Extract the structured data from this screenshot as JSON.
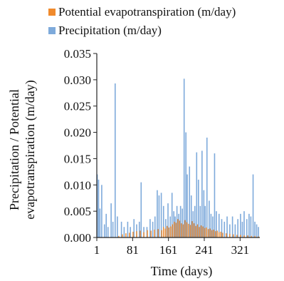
{
  "chart_data": {
    "type": "bar",
    "xlabel": "Time (days)",
    "ylabel_lines": [
      "Precipitation / Potential",
      "evapotranspiration (m/day)"
    ],
    "xlim": [
      1,
      365
    ],
    "ylim": [
      0,
      0.035
    ],
    "xticks": [
      1,
      81,
      161,
      241,
      321
    ],
    "yticks": [
      0.0,
      0.005,
      0.01,
      0.015,
      0.02,
      0.025,
      0.03,
      0.035
    ],
    "ytick_labels": [
      "0.000",
      "0.005",
      "0.010",
      "0.015",
      "0.020",
      "0.025",
      "0.030",
      "0.035"
    ],
    "grid": false,
    "legend_position": "top-left",
    "series": [
      {
        "name": "Potential evapotranspiration (m/day)",
        "color": "#f08a2c",
        "x": [
          50,
          58,
          66,
          74,
          82,
          90,
          98,
          106,
          114,
          122,
          130,
          138,
          146,
          150,
          154,
          158,
          162,
          166,
          170,
          174,
          178,
          182,
          186,
          190,
          194,
          198,
          202,
          206,
          210,
          214,
          218,
          222,
          226,
          230,
          234,
          238,
          242,
          246,
          250,
          254,
          258,
          262,
          266,
          270,
          274,
          278,
          282,
          290,
          298,
          306,
          314,
          322,
          330,
          338,
          346,
          354,
          362
        ],
        "values": [
          0.0003,
          0.0006,
          0.0008,
          0.0009,
          0.0011,
          0.0012,
          0.0013,
          0.001,
          0.0014,
          0.0013,
          0.0015,
          0.0016,
          0.0014,
          0.002,
          0.0017,
          0.0022,
          0.0019,
          0.0021,
          0.0025,
          0.003,
          0.0028,
          0.0035,
          0.0032,
          0.0027,
          0.0025,
          0.0033,
          0.0029,
          0.0026,
          0.0024,
          0.0031,
          0.0027,
          0.0022,
          0.0025,
          0.002,
          0.0023,
          0.0021,
          0.0018,
          0.0019,
          0.0016,
          0.0017,
          0.0014,
          0.0015,
          0.0012,
          0.0013,
          0.001,
          0.0011,
          0.0009,
          0.0008,
          0.0007,
          0.0006,
          0.0005,
          0.0005,
          0.0004,
          0.0004,
          0.0003,
          0.0003,
          0.0002
        ]
      },
      {
        "name": "Precipitation (m/day)",
        "color": "#7eaadb",
        "x": [
          2,
          5,
          8,
          12,
          18,
          22,
          26,
          33,
          37,
          42,
          47,
          56,
          62,
          70,
          76,
          84,
          90,
          96,
          100,
          106,
          113,
          120,
          126,
          131,
          136,
          140,
          145,
          150,
          155,
          160,
          165,
          169,
          173,
          176,
          180,
          184,
          188,
          192,
          196,
          200,
          203,
          208,
          212,
          216,
          220,
          224,
          228,
          232,
          236,
          240,
          243,
          247,
          252,
          256,
          260,
          264,
          268,
          274,
          280,
          286,
          292,
          298,
          304,
          310,
          316,
          322,
          326,
          330,
          336,
          341,
          345,
          350,
          354,
          358,
          362
        ],
        "values": [
          0.012,
          0.011,
          0.0055,
          0.01,
          0.0025,
          0.0045,
          0.002,
          0.0065,
          0.003,
          0.0293,
          0.004,
          0.003,
          0.002,
          0.003,
          0.002,
          0.0035,
          0.0025,
          0.003,
          0.0105,
          0.002,
          0.002,
          0.0035,
          0.003,
          0.004,
          0.009,
          0.008,
          0.0085,
          0.006,
          0.0035,
          0.0065,
          0.004,
          0.0085,
          0.005,
          0.004,
          0.006,
          0.0045,
          0.006,
          0.0055,
          0.0302,
          0.02,
          0.012,
          0.0135,
          0.008,
          0.005,
          0.006,
          0.0162,
          0.011,
          0.006,
          0.0165,
          0.009,
          0.006,
          0.019,
          0.007,
          0.0045,
          0.004,
          0.016,
          0.005,
          0.0045,
          0.0035,
          0.003,
          0.004,
          0.0025,
          0.004,
          0.0025,
          0.0035,
          0.0045,
          0.003,
          0.005,
          0.0035,
          0.0045,
          0.004,
          0.012,
          0.003,
          0.0025,
          0.002
        ]
      }
    ]
  }
}
